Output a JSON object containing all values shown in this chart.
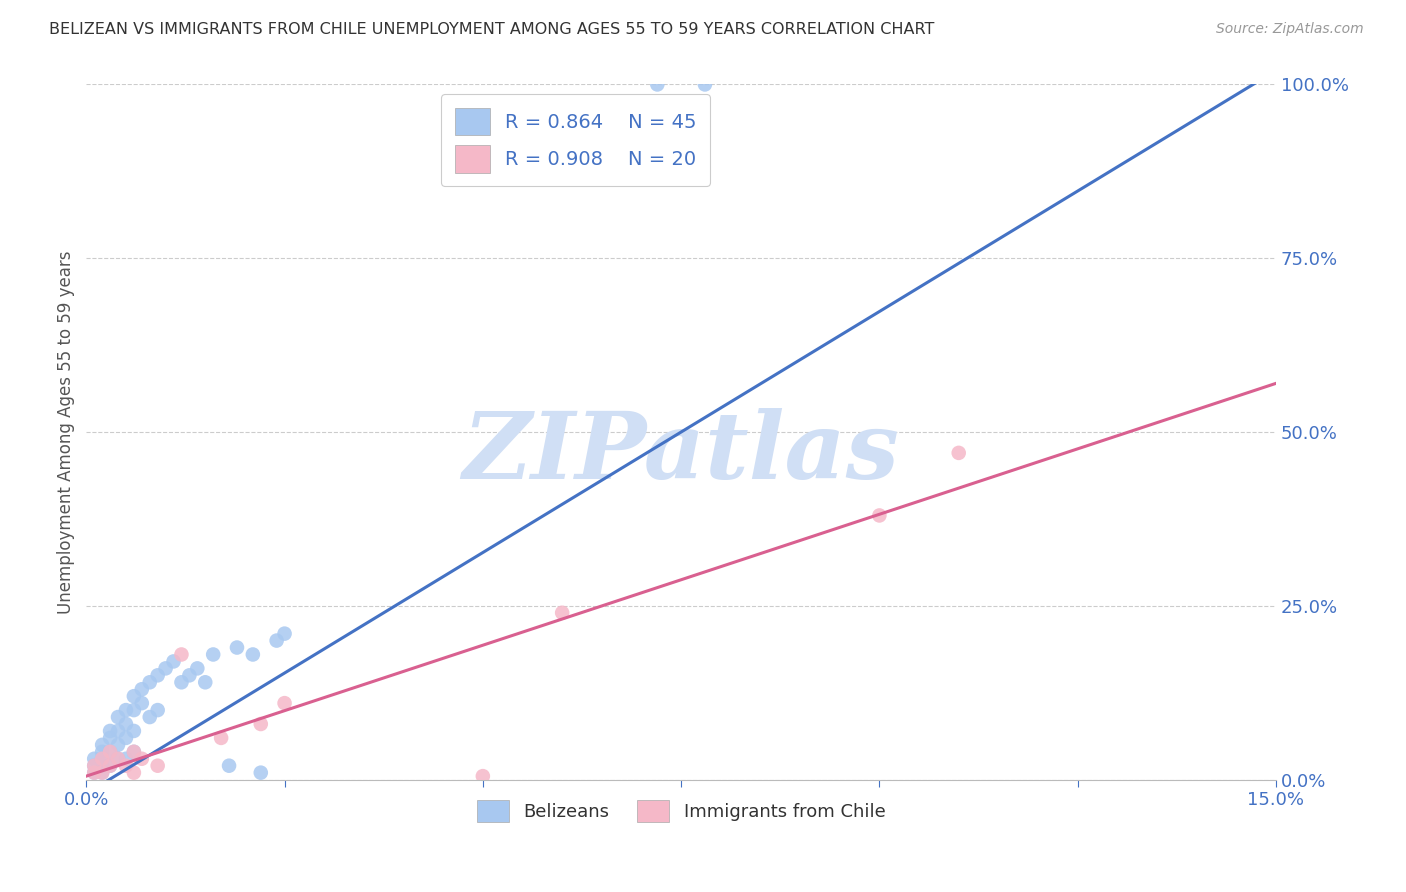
{
  "title": "BELIZEAN VS IMMIGRANTS FROM CHILE UNEMPLOYMENT AMONG AGES 55 TO 59 YEARS CORRELATION CHART",
  "source": "Source: ZipAtlas.com",
  "ylabel": "Unemployment Among Ages 55 to 59 years",
  "xmin": 0.0,
  "xmax": 0.15,
  "ymin": 0.0,
  "ymax": 1.0,
  "yticks_right": [
    0.0,
    0.25,
    0.5,
    0.75,
    1.0
  ],
  "ytick_labels_right": [
    "0.0%",
    "25.0%",
    "50.0%",
    "75.0%",
    "100.0%"
  ],
  "xtick_positions": [
    0.0,
    0.025,
    0.05,
    0.075,
    0.1,
    0.125,
    0.15
  ],
  "xtick_labels": [
    "0.0%",
    "",
    "",
    "",
    "",
    "",
    "15.0%"
  ],
  "blue_scatter_x": [
    0.001,
    0.001,
    0.001,
    0.002,
    0.002,
    0.002,
    0.002,
    0.002,
    0.003,
    0.003,
    0.003,
    0.003,
    0.004,
    0.004,
    0.004,
    0.004,
    0.005,
    0.005,
    0.005,
    0.005,
    0.006,
    0.006,
    0.006,
    0.006,
    0.007,
    0.007,
    0.008,
    0.008,
    0.009,
    0.009,
    0.01,
    0.011,
    0.012,
    0.013,
    0.014,
    0.015,
    0.016,
    0.018,
    0.019,
    0.021,
    0.022,
    0.024,
    0.025,
    0.072,
    0.078
  ],
  "blue_scatter_y": [
    0.03,
    0.02,
    0.01,
    0.05,
    0.04,
    0.03,
    0.02,
    0.01,
    0.07,
    0.06,
    0.04,
    0.02,
    0.09,
    0.07,
    0.05,
    0.03,
    0.1,
    0.08,
    0.06,
    0.03,
    0.12,
    0.1,
    0.07,
    0.04,
    0.13,
    0.11,
    0.14,
    0.09,
    0.15,
    0.1,
    0.16,
    0.17,
    0.14,
    0.15,
    0.16,
    0.14,
    0.18,
    0.02,
    0.19,
    0.18,
    0.01,
    0.2,
    0.21,
    1.0,
    1.0
  ],
  "pink_scatter_x": [
    0.001,
    0.001,
    0.002,
    0.002,
    0.003,
    0.003,
    0.004,
    0.005,
    0.006,
    0.006,
    0.007,
    0.009,
    0.012,
    0.017,
    0.022,
    0.025,
    0.05,
    0.06,
    0.1,
    0.11
  ],
  "pink_scatter_y": [
    0.01,
    0.02,
    0.01,
    0.03,
    0.02,
    0.04,
    0.03,
    0.02,
    0.04,
    0.01,
    0.03,
    0.02,
    0.18,
    0.06,
    0.08,
    0.11,
    0.005,
    0.24,
    0.38,
    0.47
  ],
  "blue_line_x": [
    0.0,
    0.15
  ],
  "blue_line_y": [
    -0.02,
    1.02
  ],
  "pink_line_x": [
    0.0,
    0.15
  ],
  "pink_line_y": [
    0.005,
    0.57
  ],
  "R_blue": "0.864",
  "N_blue": "45",
  "R_pink": "0.908",
  "N_pink": "20",
  "blue_scatter_color": "#a8c8f0",
  "pink_scatter_color": "#f5b8c8",
  "blue_line_color": "#4472c4",
  "pink_line_color": "#d96090",
  "axis_color": "#4472c4",
  "title_color": "#333333",
  "watermark_text": "ZIPatlas",
  "watermark_color": "#d0dff5",
  "background_color": "#ffffff",
  "grid_color": "#cccccc",
  "legend_text_color": "#4472c4"
}
